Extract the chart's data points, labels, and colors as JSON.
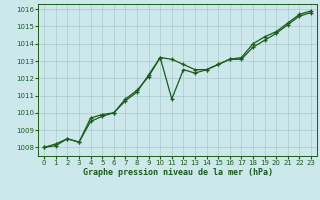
{
  "title": "Graphe pression niveau de la mer (hPa)",
  "background_color": "#cce8ea",
  "grid_color": "#aacbce",
  "line_color": "#1a5c1a",
  "xlim": [
    -0.5,
    23.5
  ],
  "ylim": [
    1007.5,
    1016.3
  ],
  "yticks": [
    1008,
    1009,
    1010,
    1011,
    1012,
    1013,
    1014,
    1015,
    1016
  ],
  "xticks": [
    0,
    1,
    2,
    3,
    4,
    5,
    6,
    7,
    8,
    9,
    10,
    11,
    12,
    13,
    14,
    15,
    16,
    17,
    18,
    19,
    20,
    21,
    22,
    23
  ],
  "series1_x": [
    0,
    1,
    2,
    3,
    4,
    5,
    6,
    7,
    8,
    9,
    10,
    11,
    12,
    13,
    14,
    15,
    16,
    17,
    18,
    19,
    20,
    21,
    22,
    23
  ],
  "series1_y": [
    1008.0,
    1008.2,
    1008.5,
    1008.3,
    1009.7,
    1009.9,
    1010.0,
    1010.8,
    1011.3,
    1012.1,
    1013.2,
    1013.1,
    1012.8,
    1012.5,
    1012.5,
    1012.8,
    1013.1,
    1013.2,
    1014.0,
    1014.4,
    1014.7,
    1015.2,
    1015.7,
    1015.9
  ],
  "series2_x": [
    0,
    1,
    2,
    3,
    4,
    5,
    6,
    7,
    8,
    9,
    10,
    11,
    12,
    13,
    14,
    15,
    16,
    17,
    18,
    19,
    20,
    21,
    22,
    23
  ],
  "series2_y": [
    1008.0,
    1008.1,
    1008.5,
    1008.3,
    1009.5,
    1009.8,
    1010.0,
    1010.7,
    1011.2,
    1012.2,
    1013.2,
    1010.8,
    1012.5,
    1012.3,
    1012.5,
    1012.8,
    1013.1,
    1013.1,
    1013.8,
    1014.2,
    1014.6,
    1015.1,
    1015.6,
    1015.8
  ],
  "title_fontsize": 6,
  "tick_fontsize": 5
}
